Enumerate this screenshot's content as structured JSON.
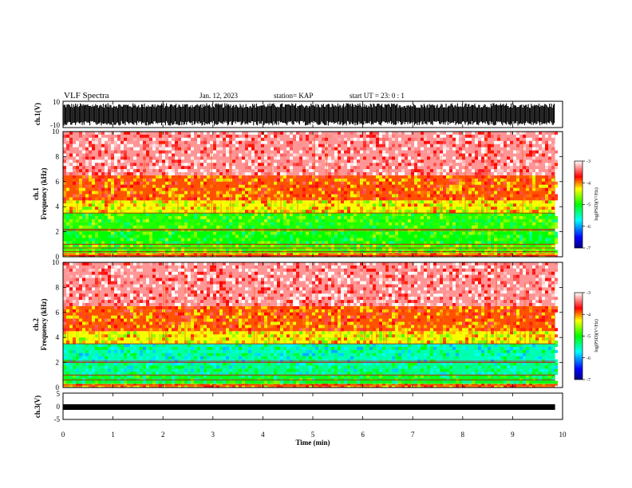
{
  "header": {
    "title": "VLF Spectra",
    "date": "Jan. 12, 2023",
    "station": "station= KAP",
    "start": "start  UT =   23: 0  : 1"
  },
  "chart_data": [
    {
      "type": "line",
      "panel": "ch1-waveform",
      "ylabel": "ch.1(V)",
      "ylim": [
        -10,
        10
      ],
      "y_tick_labels": [
        "10",
        "-10"
      ],
      "x_range_min": [
        0,
        9.85
      ],
      "description_values": "dense saturated waveform filling approximately -8 to 8 V across the full record"
    },
    {
      "type": "heatmap",
      "panel": "ch1-spectrogram",
      "ylabel": "ch.1\nFrequency (kHz)",
      "ylim": [
        0,
        10
      ],
      "y_ticks": [
        0,
        2,
        4,
        6,
        8,
        10
      ],
      "x_range_min": [
        0,
        9.85
      ],
      "colorbar": {
        "range": [
          -7,
          -3
        ],
        "ticks": [
          "-3",
          "-4",
          "-5",
          "-6",
          "-7"
        ],
        "label": "log(PSD)(V²/Hz)"
      },
      "bands_khz": [
        {
          "from": 0.0,
          "to": 0.3,
          "level": -4.0
        },
        {
          "from": 0.3,
          "to": 1.0,
          "level": -4.8
        },
        {
          "from": 1.0,
          "to": 2.0,
          "level": -5.0
        },
        {
          "from": 2.0,
          "to": 3.5,
          "level": -4.9
        },
        {
          "from": 3.5,
          "to": 4.5,
          "level": -4.3
        },
        {
          "from": 4.5,
          "to": 6.5,
          "level": -3.9
        },
        {
          "from": 6.5,
          "to": 10.0,
          "level": -3.3
        }
      ],
      "lines_khz": [
        0.1,
        0.4,
        0.7,
        1.0,
        2.1,
        2.2,
        3.5
      ]
    },
    {
      "type": "heatmap",
      "panel": "ch2-spectrogram",
      "ylabel": "ch.2\nFrequency (kHz)",
      "ylim": [
        0,
        10
      ],
      "y_ticks": [
        0,
        2,
        4,
        6,
        8,
        10
      ],
      "x_range_min": [
        0,
        9.85
      ],
      "colorbar": {
        "range": [
          -7,
          -3
        ],
        "ticks": [
          "-3",
          "-4",
          "-5",
          "-6",
          "-7"
        ],
        "label": "log(PSD)(V²/Hz)"
      },
      "bands_khz": [
        {
          "from": 0.0,
          "to": 0.3,
          "level": -4.0
        },
        {
          "from": 0.3,
          "to": 1.0,
          "level": -5.1
        },
        {
          "from": 1.0,
          "to": 2.0,
          "level": -5.4
        },
        {
          "from": 2.0,
          "to": 3.5,
          "level": -5.5
        },
        {
          "from": 3.5,
          "to": 4.5,
          "level": -4.3
        },
        {
          "from": 4.5,
          "to": 6.5,
          "level": -3.9
        },
        {
          "from": 6.5,
          "to": 10.0,
          "level": -3.3
        }
      ],
      "lines_khz": [
        0.2,
        0.6,
        1.0,
        2.0,
        2.1,
        3.5
      ]
    },
    {
      "type": "line",
      "panel": "ch3-waveform",
      "ylabel": "ch.3(V)",
      "ylim": [
        -5,
        5
      ],
      "y_tick_labels": [
        "5",
        "0",
        "-5"
      ],
      "x_range_min": [
        0,
        9.85
      ],
      "band_v": [
        -0.4,
        0.4
      ]
    }
  ],
  "xaxis": {
    "label": "Time (min)",
    "range": [
      0,
      10
    ],
    "ticks": [
      "0",
      "1",
      "2",
      "3",
      "4",
      "5",
      "6",
      "7",
      "8",
      "9",
      "10"
    ]
  },
  "colors": {
    "frame": "#000000",
    "background": "#ffffff"
  }
}
